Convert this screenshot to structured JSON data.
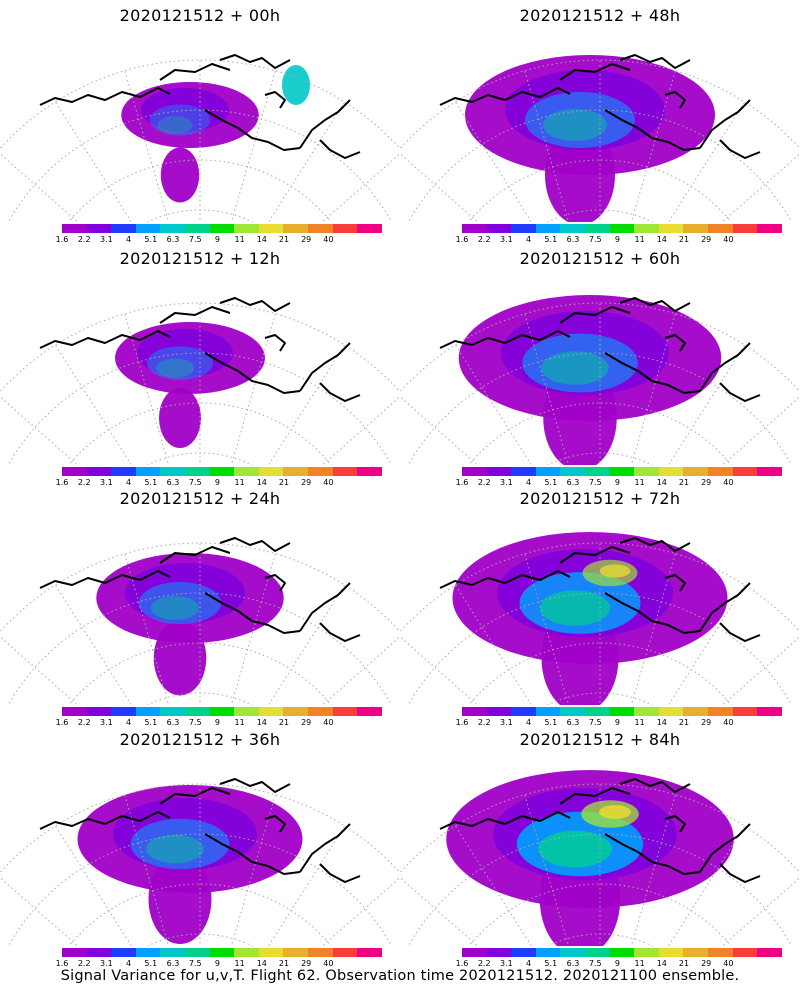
{
  "panels": [
    {
      "title": "2020121512 + 00h"
    },
    {
      "title": "2020121512 + 48h"
    },
    {
      "title": "2020121512 + 12h"
    },
    {
      "title": "2020121512 + 60h"
    },
    {
      "title": "2020121512 + 24h"
    },
    {
      "title": "2020121512 + 72h"
    },
    {
      "title": "2020121512 + 36h"
    },
    {
      "title": "2020121512 + 84h"
    }
  ],
  "colorbar": {
    "labels": [
      "1.6",
      "2.2",
      "3.1",
      "4",
      "5.1",
      "6.3",
      "7.5",
      "9",
      "11",
      "14",
      "21",
      "29",
      "40"
    ],
    "colors": [
      "#a000c8",
      "#8200dc",
      "#1e3cff",
      "#00a0ff",
      "#00c8c8",
      "#00d28c",
      "#00dc00",
      "#a0e632",
      "#e6dc32",
      "#e6af2d",
      "#f08228",
      "#fa3c3c",
      "#f00082"
    ]
  },
  "footer": "Signal Variance for u,v,T. Flight 62. Observation time 2020121512. 2020121100 ensemble."
}
